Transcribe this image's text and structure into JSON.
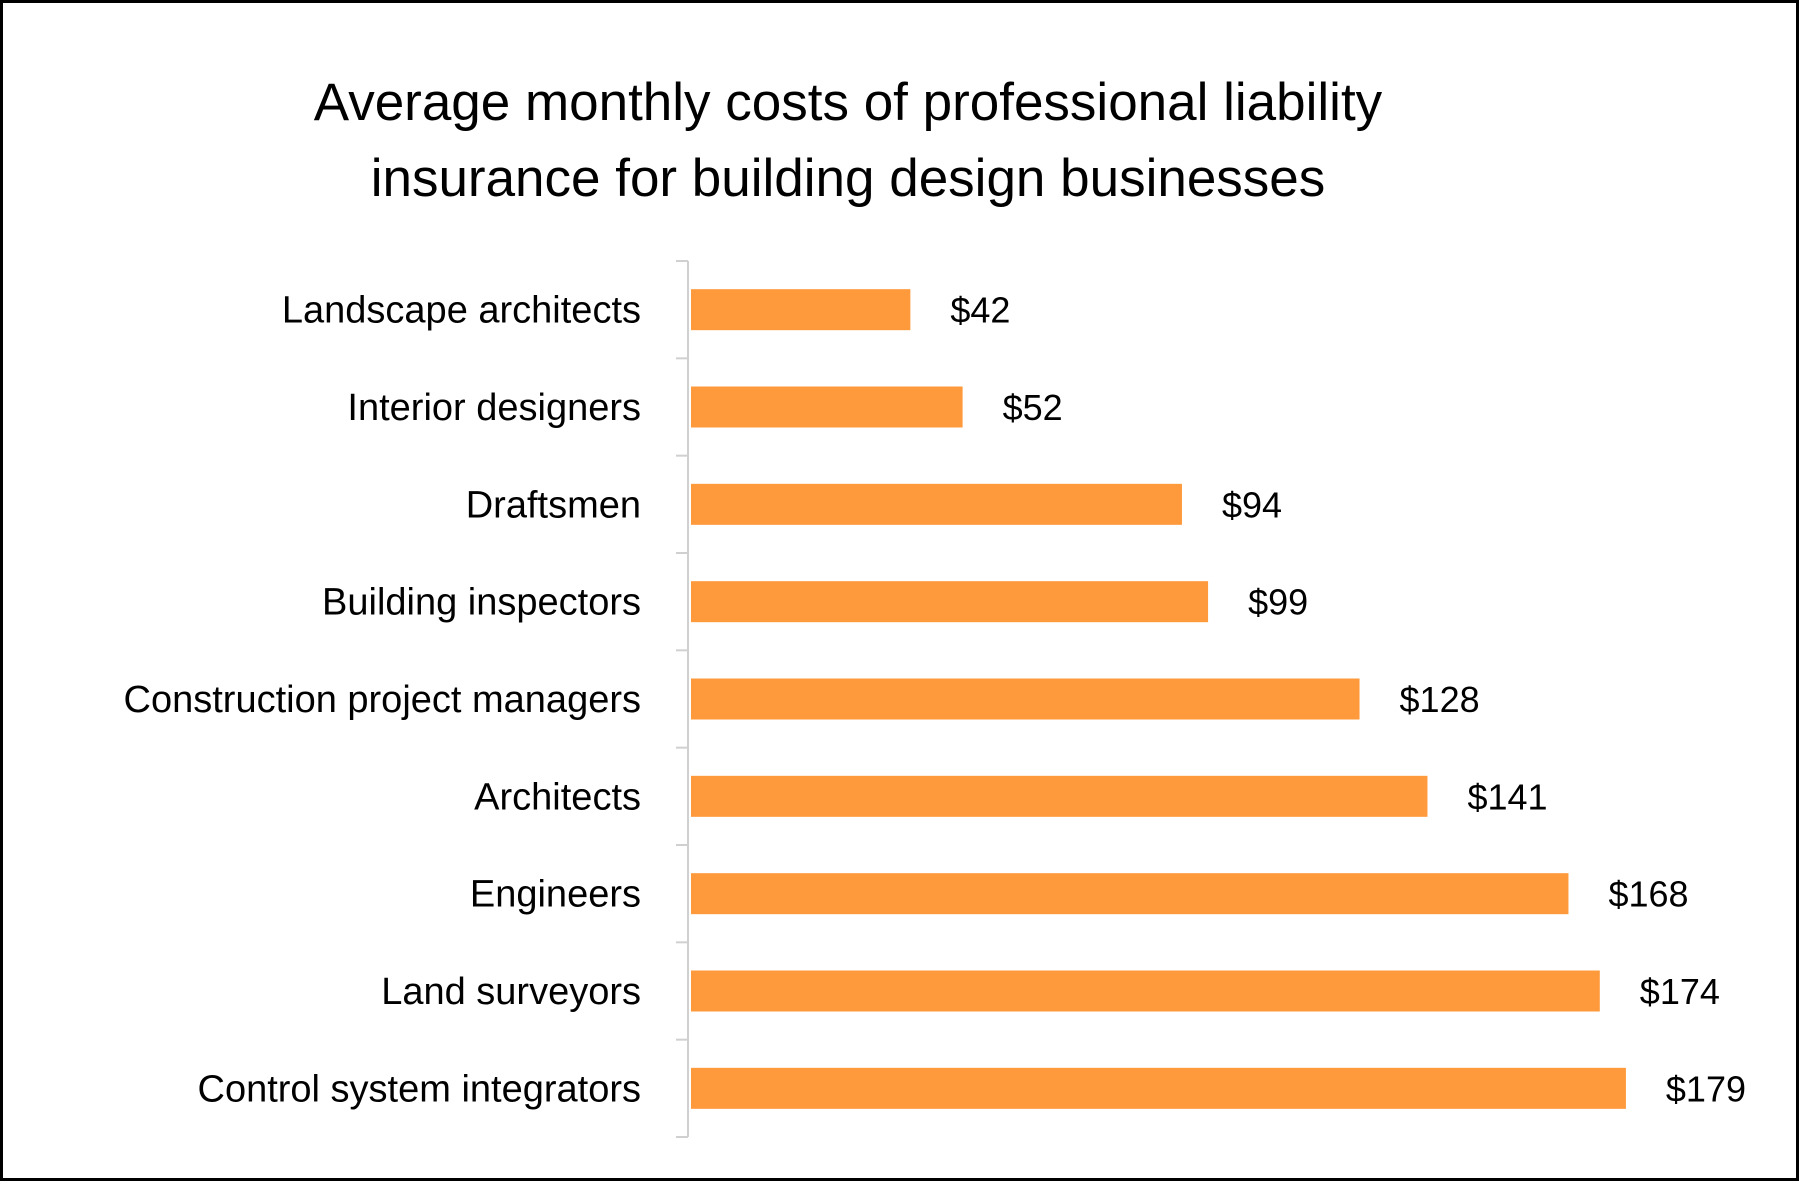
{
  "chart_data": {
    "type": "bar",
    "orientation": "horizontal",
    "title_lines": [
      "Average monthly costs of professional liability",
      "insurance for building design businesses"
    ],
    "categories": [
      "Landscape architects",
      "Interior designers",
      "Draftsmen",
      "Building inspectors",
      "Construction project managers",
      "Architects",
      "Engineers",
      "Land surveyors",
      "Control system integrators"
    ],
    "values": [
      42,
      52,
      94,
      99,
      128,
      141,
      168,
      174,
      179
    ],
    "data_labels": [
      "$42",
      "$52",
      "$94",
      "$99",
      "$128",
      "$141",
      "$168",
      "$174",
      "$179"
    ],
    "xlabel": "",
    "ylabel": "",
    "grid": false,
    "legend": "none",
    "bar_color": "#FF9A3C"
  }
}
